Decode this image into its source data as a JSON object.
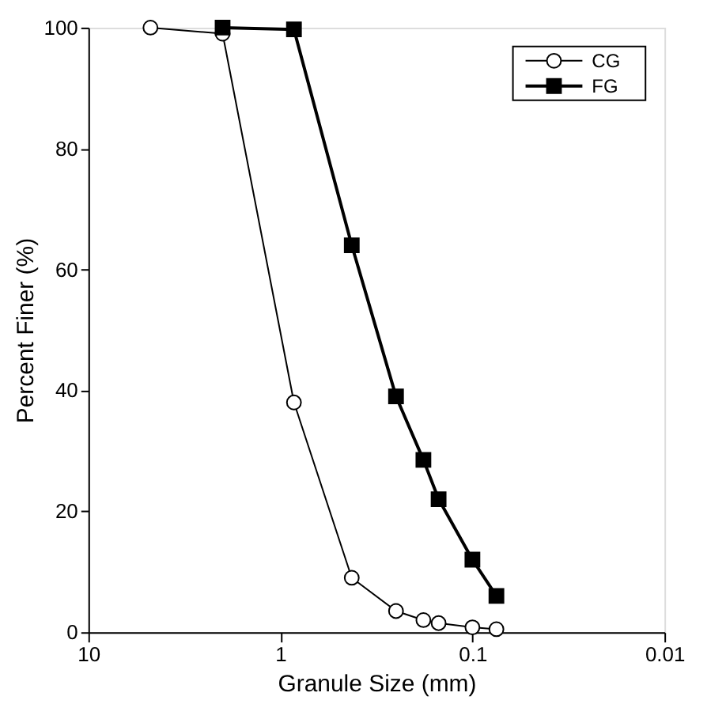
{
  "chart_data": {
    "type": "line",
    "xlabel": "Granule Size (mm)",
    "ylabel": "Percent Finer (%)",
    "log": "x",
    "xlim": [
      10,
      0.01
    ],
    "xticks": [
      10,
      1,
      0.1,
      0.01
    ],
    "ylim": [
      0,
      100
    ],
    "yticks": [
      0,
      20,
      40,
      60,
      80,
      100
    ],
    "grid": false,
    "legend": "top right",
    "line_style": "solid",
    "series": [
      {
        "name": "CG",
        "color": "#000000",
        "marker": "circle",
        "x": [
          4.75,
          2.0,
          0.85,
          0.425,
          0.25,
          0.18,
          0.15,
          0.1,
          0.075
        ],
        "values": [
          100,
          99,
          38,
          9,
          3.5,
          2,
          1.5,
          0.8,
          0.5
        ]
      },
      {
        "name": "FG",
        "color": "#000000",
        "marker": "square",
        "x": [
          2.0,
          0.85,
          0.425,
          0.25,
          0.18,
          0.15,
          0.1,
          0.075
        ],
        "values": [
          100,
          99.7,
          64,
          39,
          28.5,
          22,
          12,
          6
        ]
      }
    ]
  }
}
